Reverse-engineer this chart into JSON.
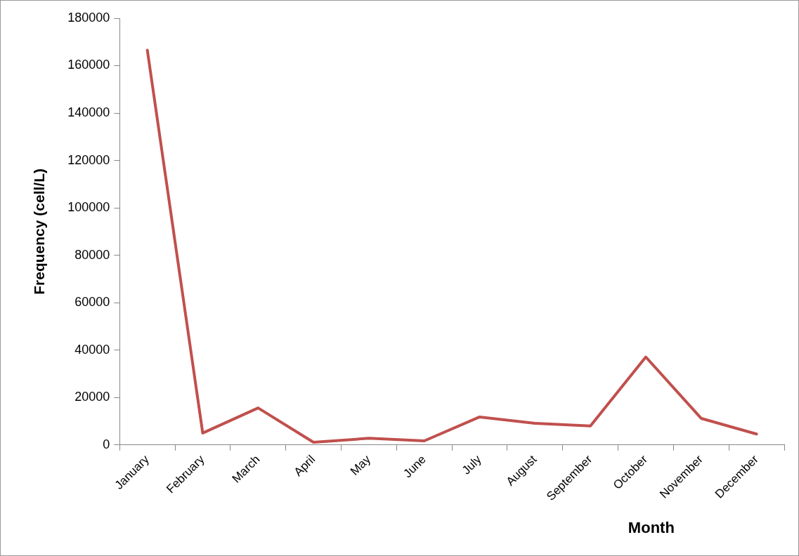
{
  "chart_data": {
    "type": "line",
    "xlabel": "Month",
    "ylabel": "Frequency (cell/L)",
    "categories": [
      "January",
      "February",
      "March",
      "April",
      "May",
      "June",
      "July",
      "August",
      "September",
      "October",
      "November",
      "December"
    ],
    "values": [
      166500,
      5000,
      15600,
      1100,
      2800,
      1700,
      11800,
      9100,
      8000,
      37100,
      11200,
      4600
    ],
    "color": "#c0504d",
    "ylim": [
      0,
      180000
    ],
    "yticks": [
      0,
      20000,
      40000,
      60000,
      80000,
      100000,
      120000,
      140000,
      160000,
      180000
    ],
    "grid": false,
    "legend": false,
    "marker": "none",
    "line_style": "solid"
  }
}
